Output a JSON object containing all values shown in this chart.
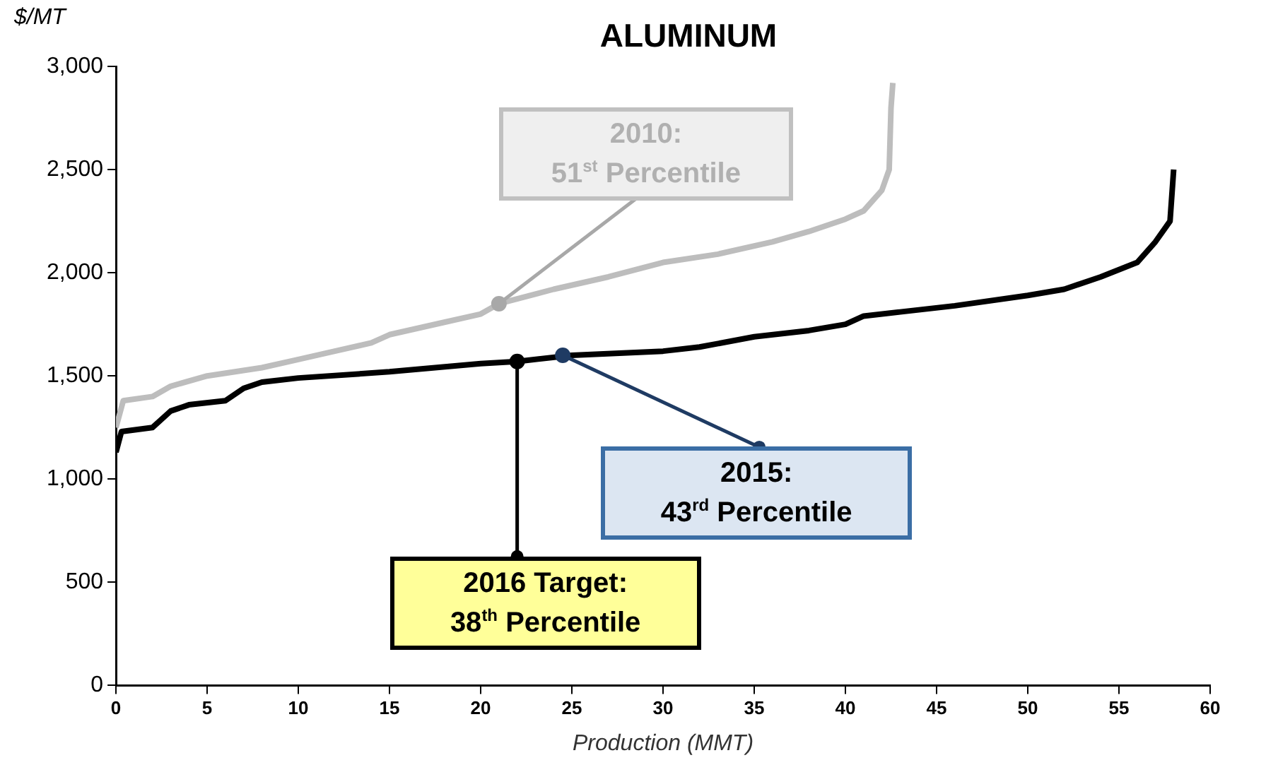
{
  "chart_data": {
    "type": "line",
    "title": "ALUMINUM",
    "ylabel": "$/MT",
    "xlabel": "Production (MMT)",
    "xlim": [
      0,
      60
    ],
    "xticks": [
      0,
      5,
      10,
      15,
      20,
      25,
      30,
      35,
      40,
      45,
      50,
      55,
      60
    ],
    "ylim": [
      0,
      3000
    ],
    "yticks": [
      0,
      500,
      {
        "value": 1000,
        "label": "1,000"
      },
      {
        "value": 1500,
        "label": "1,500"
      },
      {
        "value": 2000,
        "label": "2,000"
      },
      {
        "value": 2500,
        "label": "2,500"
      },
      {
        "value": 3000,
        "label": "3,000"
      }
    ],
    "grid": false,
    "legend": false,
    "marker": "none",
    "line_style": "solid",
    "series": [
      {
        "color": "#bdbdbd",
        "x": [
          0,
          0.4,
          2,
          3,
          5,
          8,
          10,
          12,
          14,
          15,
          18,
          20,
          21,
          24,
          27,
          30,
          33,
          36,
          38,
          40,
          41,
          42,
          42.4,
          42.5,
          42.6
        ],
        "values": [
          1250,
          1380,
          1400,
          1450,
          1500,
          1540,
          1580,
          1620,
          1660,
          1700,
          1760,
          1800,
          1850,
          1920,
          1980,
          2050,
          2090,
          2150,
          2200,
          2260,
          2300,
          2400,
          2500,
          2800,
          2920
        ]
      },
      {
        "color": "#000000",
        "x": [
          0,
          0.3,
          2,
          3,
          4,
          6,
          7,
          8,
          10,
          15,
          20,
          22,
          25,
          30,
          32,
          35,
          38,
          40,
          41,
          43,
          46,
          50,
          52,
          54,
          56,
          57,
          57.8,
          58
        ],
        "values": [
          1130,
          1230,
          1250,
          1330,
          1360,
          1380,
          1440,
          1470,
          1490,
          1520,
          1560,
          1570,
          1600,
          1620,
          1640,
          1690,
          1720,
          1750,
          1790,
          1810,
          1840,
          1890,
          1920,
          1980,
          2050,
          2150,
          2250,
          2500
        ]
      }
    ],
    "annotations": [
      {
        "text": "2010:\n51$^{st}$ Percentile",
        "x": 21,
        "y": 1850
      },
      {
        "text": "2015:\n43$^{rd}$ Percentile",
        "x": 24.5,
        "y": 1600
      },
      {
        "text": "2016 Target:\n38$^{th}$ Percentile",
        "x": 22,
        "y": 1570
      }
    ]
  }
}
